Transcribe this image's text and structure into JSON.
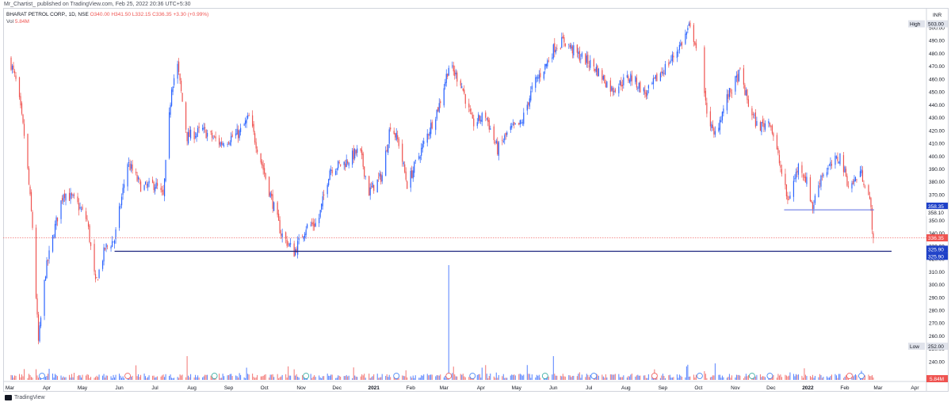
{
  "publisher": "Mr_Chartist_ published on TradingView.com, Feb 25, 2022 20:36 UTC+5:30",
  "legend": {
    "symbol": "BHARAT PETROL CORP., 1D, NSE",
    "o": "O340.00",
    "h": "H341.50",
    "l": "L332.15",
    "c": "C336.35",
    "change": "+3.30 (+0.99%)",
    "vol_label": "Vol",
    "vol_value": "5.84M"
  },
  "currency": "INR",
  "footer_brand": "TradingView",
  "colors": {
    "up": "#2962ff",
    "down": "#ef5350",
    "support_line": "#1a237e",
    "short_support_line": "#5b6be0",
    "current_price": "#ef5350",
    "support_label": "#1e40c8",
    "bullet_dividends": "#3179f5",
    "bullet_earnings_red": "#ef5350",
    "bullet_earnings_green": "#26a69a"
  },
  "chart_data": {
    "type": "candlestick",
    "title": "BHARAT PETROL CORP., 1D, NSE",
    "x_ticks": [
      "Mar",
      "Apr",
      "May",
      "Jun",
      "Jul",
      "Aug",
      "Sep",
      "Oct",
      "Nov",
      "Dec",
      "2021",
      "Feb",
      "Mar",
      "Apr",
      "May",
      "Jun",
      "Jul",
      "Aug",
      "Sep",
      "Oct",
      "Nov",
      "Dec",
      "2022",
      "Feb",
      "Mar",
      "Apr"
    ],
    "y_ticks": [
      240,
      250,
      260,
      270,
      280,
      290,
      300,
      310,
      320,
      330,
      340,
      350,
      360,
      370,
      380,
      390,
      400,
      410,
      420,
      430,
      440,
      450,
      460,
      470,
      480,
      490,
      500
    ],
    "ylim": [
      235,
      508
    ],
    "anchors": [
      [
        "2020-03-01",
        475
      ],
      [
        "2020-03-07",
        455
      ],
      [
        "2020-03-14",
        410
      ],
      [
        "2020-03-20",
        345
      ],
      [
        "2020-03-25",
        255
      ],
      [
        "2020-03-31",
        310
      ],
      [
        "2020-04-08",
        345
      ],
      [
        "2020-04-15",
        372
      ],
      [
        "2020-04-25",
        365
      ],
      [
        "2020-05-05",
        350
      ],
      [
        "2020-05-12",
        300
      ],
      [
        "2020-05-20",
        328
      ],
      [
        "2020-05-28",
        335
      ],
      [
        "2020-06-08",
        395
      ],
      [
        "2020-06-20",
        375
      ],
      [
        "2020-07-01",
        378
      ],
      [
        "2020-07-08",
        368
      ],
      [
        "2020-07-15",
        455
      ],
      [
        "2020-07-20",
        470
      ],
      [
        "2020-07-28",
        415
      ],
      [
        "2020-08-10",
        420
      ],
      [
        "2020-08-25",
        410
      ],
      [
        "2020-09-10",
        418
      ],
      [
        "2020-09-18",
        430
      ],
      [
        "2020-09-30",
        390
      ],
      [
        "2020-10-15",
        340
      ],
      [
        "2020-10-26",
        325
      ],
      [
        "2020-11-05",
        345
      ],
      [
        "2020-11-15",
        348
      ],
      [
        "2020-11-25",
        390
      ],
      [
        "2020-12-08",
        395
      ],
      [
        "2020-12-20",
        405
      ],
      [
        "2020-12-28",
        372
      ],
      [
        "2021-01-08",
        385
      ],
      [
        "2021-01-15",
        425
      ],
      [
        "2021-01-22",
        410
      ],
      [
        "2021-01-29",
        378
      ],
      [
        "2021-02-10",
        405
      ],
      [
        "2021-02-25",
        440
      ],
      [
        "2021-03-05",
        470
      ],
      [
        "2021-03-15",
        458
      ],
      [
        "2021-03-25",
        425
      ],
      [
        "2021-04-05",
        432
      ],
      [
        "2021-04-15",
        405
      ],
      [
        "2021-04-25",
        420
      ],
      [
        "2021-05-05",
        425
      ],
      [
        "2021-05-15",
        455
      ],
      [
        "2021-05-25",
        470
      ],
      [
        "2021-06-02",
        485
      ],
      [
        "2021-06-10",
        490
      ],
      [
        "2021-06-20",
        480
      ],
      [
        "2021-07-05",
        470
      ],
      [
        "2021-07-20",
        452
      ],
      [
        "2021-08-05",
        462
      ],
      [
        "2021-08-18",
        448
      ],
      [
        "2021-08-28",
        462
      ],
      [
        "2021-09-08",
        475
      ],
      [
        "2021-09-18",
        490
      ],
      [
        "2021-09-23",
        500
      ],
      [
        "2021-09-28",
        490
      ],
      [
        "2021-10-07",
        440
      ],
      [
        "2021-10-14",
        415
      ],
      [
        "2021-10-25",
        445
      ],
      [
        "2021-11-05",
        465
      ],
      [
        "2021-11-12",
        440
      ],
      [
        "2021-11-20",
        422
      ],
      [
        "2021-11-30",
        428
      ],
      [
        "2021-12-08",
        395
      ],
      [
        "2021-12-15",
        365
      ],
      [
        "2021-12-25",
        395
      ],
      [
        "2021-12-31",
        380
      ],
      [
        "2022-01-05",
        360
      ],
      [
        "2022-01-12",
        385
      ],
      [
        "2022-01-20",
        392
      ],
      [
        "2022-01-28",
        400
      ],
      [
        "2022-02-05",
        375
      ],
      [
        "2022-02-14",
        388
      ],
      [
        "2022-02-20",
        375
      ],
      [
        "2022-02-23",
        358
      ],
      [
        "2022-02-25",
        336
      ]
    ],
    "volume_spikes": [
      [
        "2021-03-05",
        6.5
      ],
      [
        "2021-06-01",
        1.2
      ],
      [
        "2020-07-28",
        1.0
      ]
    ],
    "annotations": {
      "high_label": "High",
      "high_value": "503.00",
      "low_label": "Low",
      "low_value": "252.00",
      "current_price": "336.35",
      "support_line_value": "325.90",
      "support_line_value_2": "325.90",
      "short_line_value": "358.35",
      "short_line_value_2": "358.10",
      "volume_label": "5.84M"
    },
    "grid": false
  }
}
